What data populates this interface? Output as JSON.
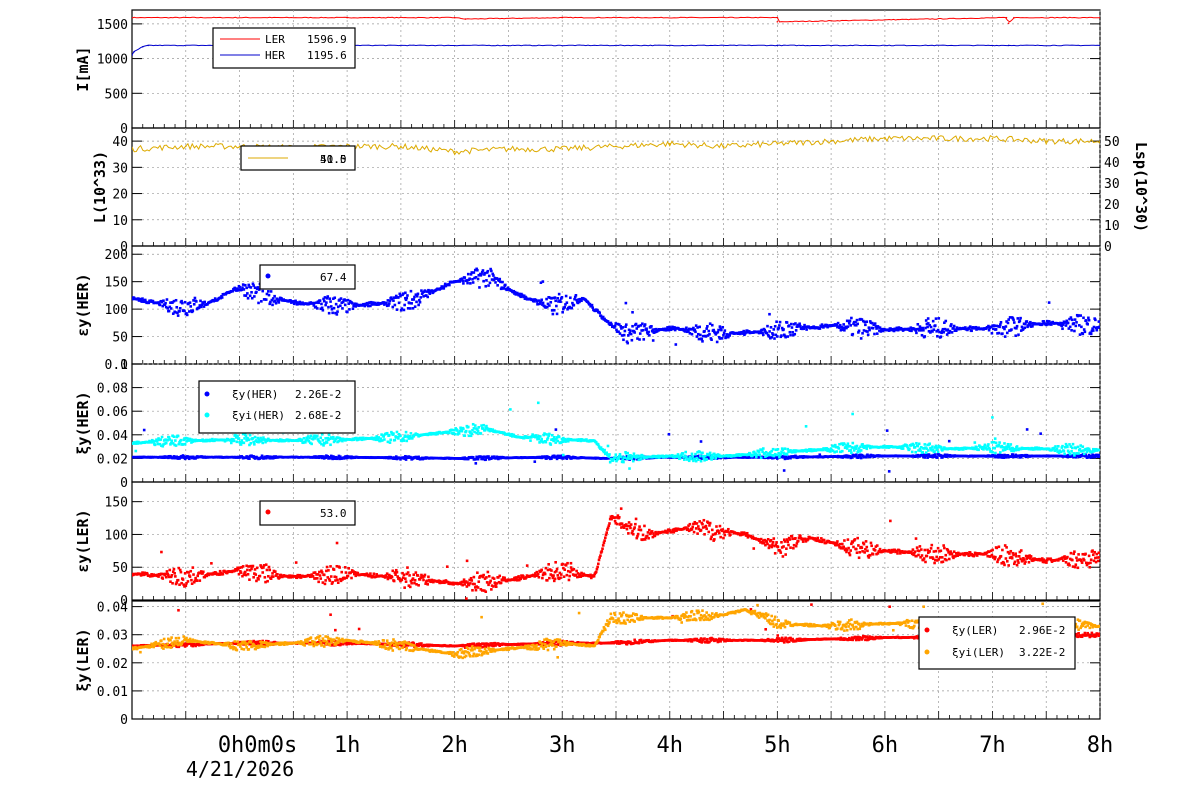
{
  "date_label": "4/21/2026",
  "x_tick_labels": [
    "0h0m0s",
    "1h",
    "2h",
    "3h",
    "4h",
    "5h",
    "6h",
    "7h",
    "8h"
  ],
  "chart_data": [
    {
      "type": "line",
      "ylabel": "I[mA]",
      "ylim": [
        0,
        1700
      ],
      "yticks": [
        0,
        500,
        1000,
        1500
      ],
      "x_range_hours": [
        -1,
        8
      ],
      "grid": true,
      "legend_placement": "top-left",
      "series": [
        {
          "name": "LER",
          "legend_value": "1596.9",
          "color": "#ff0000",
          "x": [
            -1,
            1.0,
            2.0,
            2.1,
            3.0,
            5.0,
            5.0,
            7.13,
            7.15,
            7.2,
            8
          ],
          "y": [
            1590,
            1590,
            1590,
            1570,
            1590,
            1590,
            1530,
            1590,
            1510,
            1590,
            1590
          ]
        },
        {
          "name": "HER",
          "legend_value": "1195.6",
          "color": "#0000cc",
          "x": [
            -1,
            -0.98,
            -0.9,
            -0.85,
            1,
            5,
            7.15,
            8
          ],
          "y": [
            1050,
            1100,
            1170,
            1190,
            1190,
            1190,
            1190,
            1190
          ]
        }
      ]
    },
    {
      "type": "line",
      "ylabel": "L(10^33)",
      "ylim": [
        0,
        45
      ],
      "yticks": [
        0,
        10,
        20,
        30,
        40
      ],
      "y2label": "Lsp(10^30)",
      "y2lim": [
        0,
        56.25
      ],
      "y2ticks": [
        0,
        10,
        20,
        30,
        40,
        50
      ],
      "grid": true,
      "legend_placement": "top-left",
      "legend_values": [
        "51.5",
        "40.0"
      ],
      "series": [
        {
          "name": "",
          "color": "#ddaa00",
          "x": [
            -1,
            -0.5,
            0,
            0.5,
            1,
            1.5,
            2,
            2.5,
            3,
            3.5,
            4,
            4.5,
            5,
            5.5,
            6,
            6.5,
            7,
            7.5,
            8
          ],
          "y": [
            37,
            38,
            38,
            37.5,
            38,
            38,
            36,
            37,
            37,
            38,
            39,
            38,
            39,
            40,
            41,
            41,
            41,
            40,
            40
          ]
        }
      ]
    },
    {
      "type": "scatter",
      "ylabel": "εy(HER)",
      "ylim": [
        0,
        215
      ],
      "yticks": [
        0,
        50,
        100,
        150,
        200
      ],
      "grid": true,
      "legend_placement": "top-left",
      "series": [
        {
          "name": "",
          "legend_value": "67.4",
          "color": "#0000ff",
          "x": [
            -1,
            -0.6,
            -0.3,
            0,
            0.3,
            0.6,
            1,
            1.3,
            1.6,
            2,
            2.3,
            2.6,
            2.9,
            3.2,
            3.4,
            3.6,
            4,
            4.5,
            5,
            5.5,
            6,
            6.5,
            7,
            7.5,
            8
          ],
          "y": [
            120,
            105,
            110,
            140,
            120,
            110,
            105,
            110,
            115,
            150,
            160,
            125,
            105,
            120,
            80,
            55,
            65,
            55,
            60,
            70,
            62,
            65,
            64,
            75,
            70
          ]
        }
      ]
    },
    {
      "type": "scatter",
      "ylabel": "ξy(HER)",
      "ylim": [
        0,
        0.1
      ],
      "yticks": [
        0,
        0.02,
        0.04,
        0.06,
        0.08,
        0.1
      ],
      "grid": true,
      "legend_placement": "top-left",
      "series": [
        {
          "name": "ξy(HER)",
          "legend_value": "2.26E-2",
          "color": "#0000ff",
          "x": [
            -1,
            0,
            1,
            2,
            3,
            3.4,
            4,
            5,
            6,
            7,
            8
          ],
          "y": [
            0.021,
            0.021,
            0.021,
            0.02,
            0.021,
            0.02,
            0.021,
            0.021,
            0.022,
            0.022,
            0.022
          ]
        },
        {
          "name": "ξyi(HER)",
          "legend_value": "2.68E-2",
          "color": "#00ffff",
          "x": [
            -1,
            -0.5,
            0,
            0.5,
            1,
            1.5,
            2,
            2.3,
            2.6,
            3,
            3.3,
            3.45,
            4,
            4.5,
            5,
            5.5,
            6,
            6.5,
            7,
            7.5,
            8
          ],
          "y": [
            0.033,
            0.035,
            0.036,
            0.035,
            0.036,
            0.038,
            0.043,
            0.045,
            0.038,
            0.036,
            0.035,
            0.02,
            0.022,
            0.022,
            0.025,
            0.028,
            0.03,
            0.028,
            0.029,
            0.028,
            0.027
          ]
        }
      ]
    },
    {
      "type": "scatter",
      "ylabel": "εy(LER)",
      "ylim": [
        0,
        180
      ],
      "yticks": [
        0,
        50,
        100,
        150
      ],
      "grid": true,
      "legend_placement": "top-left",
      "series": [
        {
          "name": "",
          "legend_value": "53.0",
          "color": "#ff0000",
          "x": [
            -1,
            -0.5,
            0,
            0.5,
            1,
            1.5,
            2,
            2.5,
            2.8,
            3,
            3.3,
            3.45,
            3.8,
            4.2,
            4.7,
            5,
            5.3,
            5.7,
            6,
            6.5,
            7,
            7.5,
            8
          ],
          "y": [
            40,
            35,
            45,
            35,
            40,
            35,
            25,
            30,
            40,
            45,
            35,
            125,
            100,
            110,
            100,
            80,
            95,
            80,
            75,
            70,
            70,
            60,
            65
          ]
        }
      ]
    },
    {
      "type": "scatter",
      "ylabel": "ξy(LER)",
      "ylim": [
        0,
        0.042
      ],
      "yticks": [
        0,
        0.01,
        0.02,
        0.03,
        0.04
      ],
      "grid": true,
      "legend_placement": "top-right",
      "series": [
        {
          "name": "ξy(LER)",
          "legend_value": "2.96E-2",
          "color": "#ff0000",
          "x": [
            -1,
            0,
            1,
            2,
            3,
            3.4,
            4,
            5,
            6,
            7,
            8
          ],
          "y": [
            0.026,
            0.027,
            0.027,
            0.026,
            0.027,
            0.027,
            0.028,
            0.028,
            0.029,
            0.029,
            0.03
          ]
        },
        {
          "name": "ξyi(LER)",
          "legend_value": "3.22E-2",
          "color": "#ffa500",
          "x": [
            -1,
            -0.5,
            0,
            0.5,
            1,
            1.5,
            2,
            2.5,
            3,
            3.3,
            3.45,
            4,
            4.5,
            4.7,
            5,
            5.5,
            6,
            6.5,
            7,
            7.5,
            8
          ],
          "y": [
            0.025,
            0.028,
            0.026,
            0.027,
            0.028,
            0.026,
            0.023,
            0.025,
            0.027,
            0.026,
            0.036,
            0.036,
            0.037,
            0.039,
            0.034,
            0.033,
            0.034,
            0.034,
            0.034,
            0.034,
            0.033
          ]
        }
      ]
    }
  ]
}
